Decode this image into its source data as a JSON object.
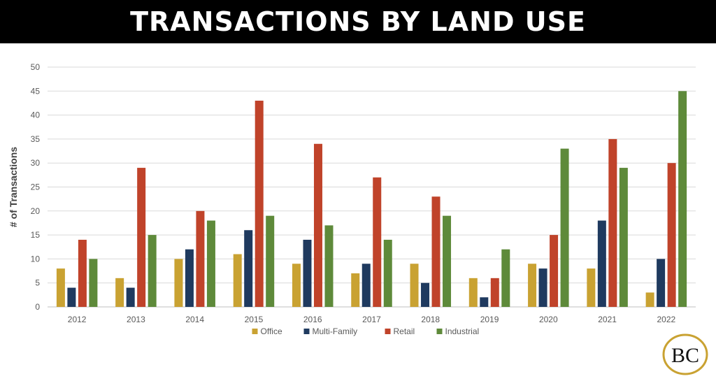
{
  "banner": {
    "title": "TRANSACTIONS BY LAND USE"
  },
  "chart_data": {
    "type": "bar",
    "title": "",
    "xlabel": "",
    "ylabel": "# of Transactions",
    "ylim": [
      0,
      50
    ],
    "yticks": [
      0,
      5,
      10,
      15,
      20,
      25,
      30,
      35,
      40,
      45,
      50
    ],
    "grid": true,
    "legend_position": "bottom",
    "categories": [
      "2012",
      "2013",
      "2014",
      "2015",
      "2016",
      "2017",
      "2018",
      "2019",
      "2020",
      "2021",
      "2022"
    ],
    "series": [
      {
        "name": "Office",
        "color": "#c9a232",
        "values": [
          8,
          6,
          10,
          11,
          9,
          7,
          9,
          6,
          9,
          8,
          3
        ]
      },
      {
        "name": "Multi-Family",
        "color": "#1f3a5f",
        "values": [
          4,
          4,
          12,
          16,
          14,
          9,
          5,
          2,
          8,
          18,
          10
        ]
      },
      {
        "name": "Retail",
        "color": "#c0432a",
        "values": [
          14,
          29,
          20,
          43,
          34,
          27,
          23,
          6,
          15,
          35,
          30
        ]
      },
      {
        "name": "Industrial",
        "color": "#5e8a3a",
        "values": [
          10,
          15,
          18,
          19,
          17,
          14,
          19,
          12,
          33,
          29,
          45
        ]
      }
    ]
  },
  "logo": {
    "text": "BC",
    "ring_color": "#c9a232"
  }
}
